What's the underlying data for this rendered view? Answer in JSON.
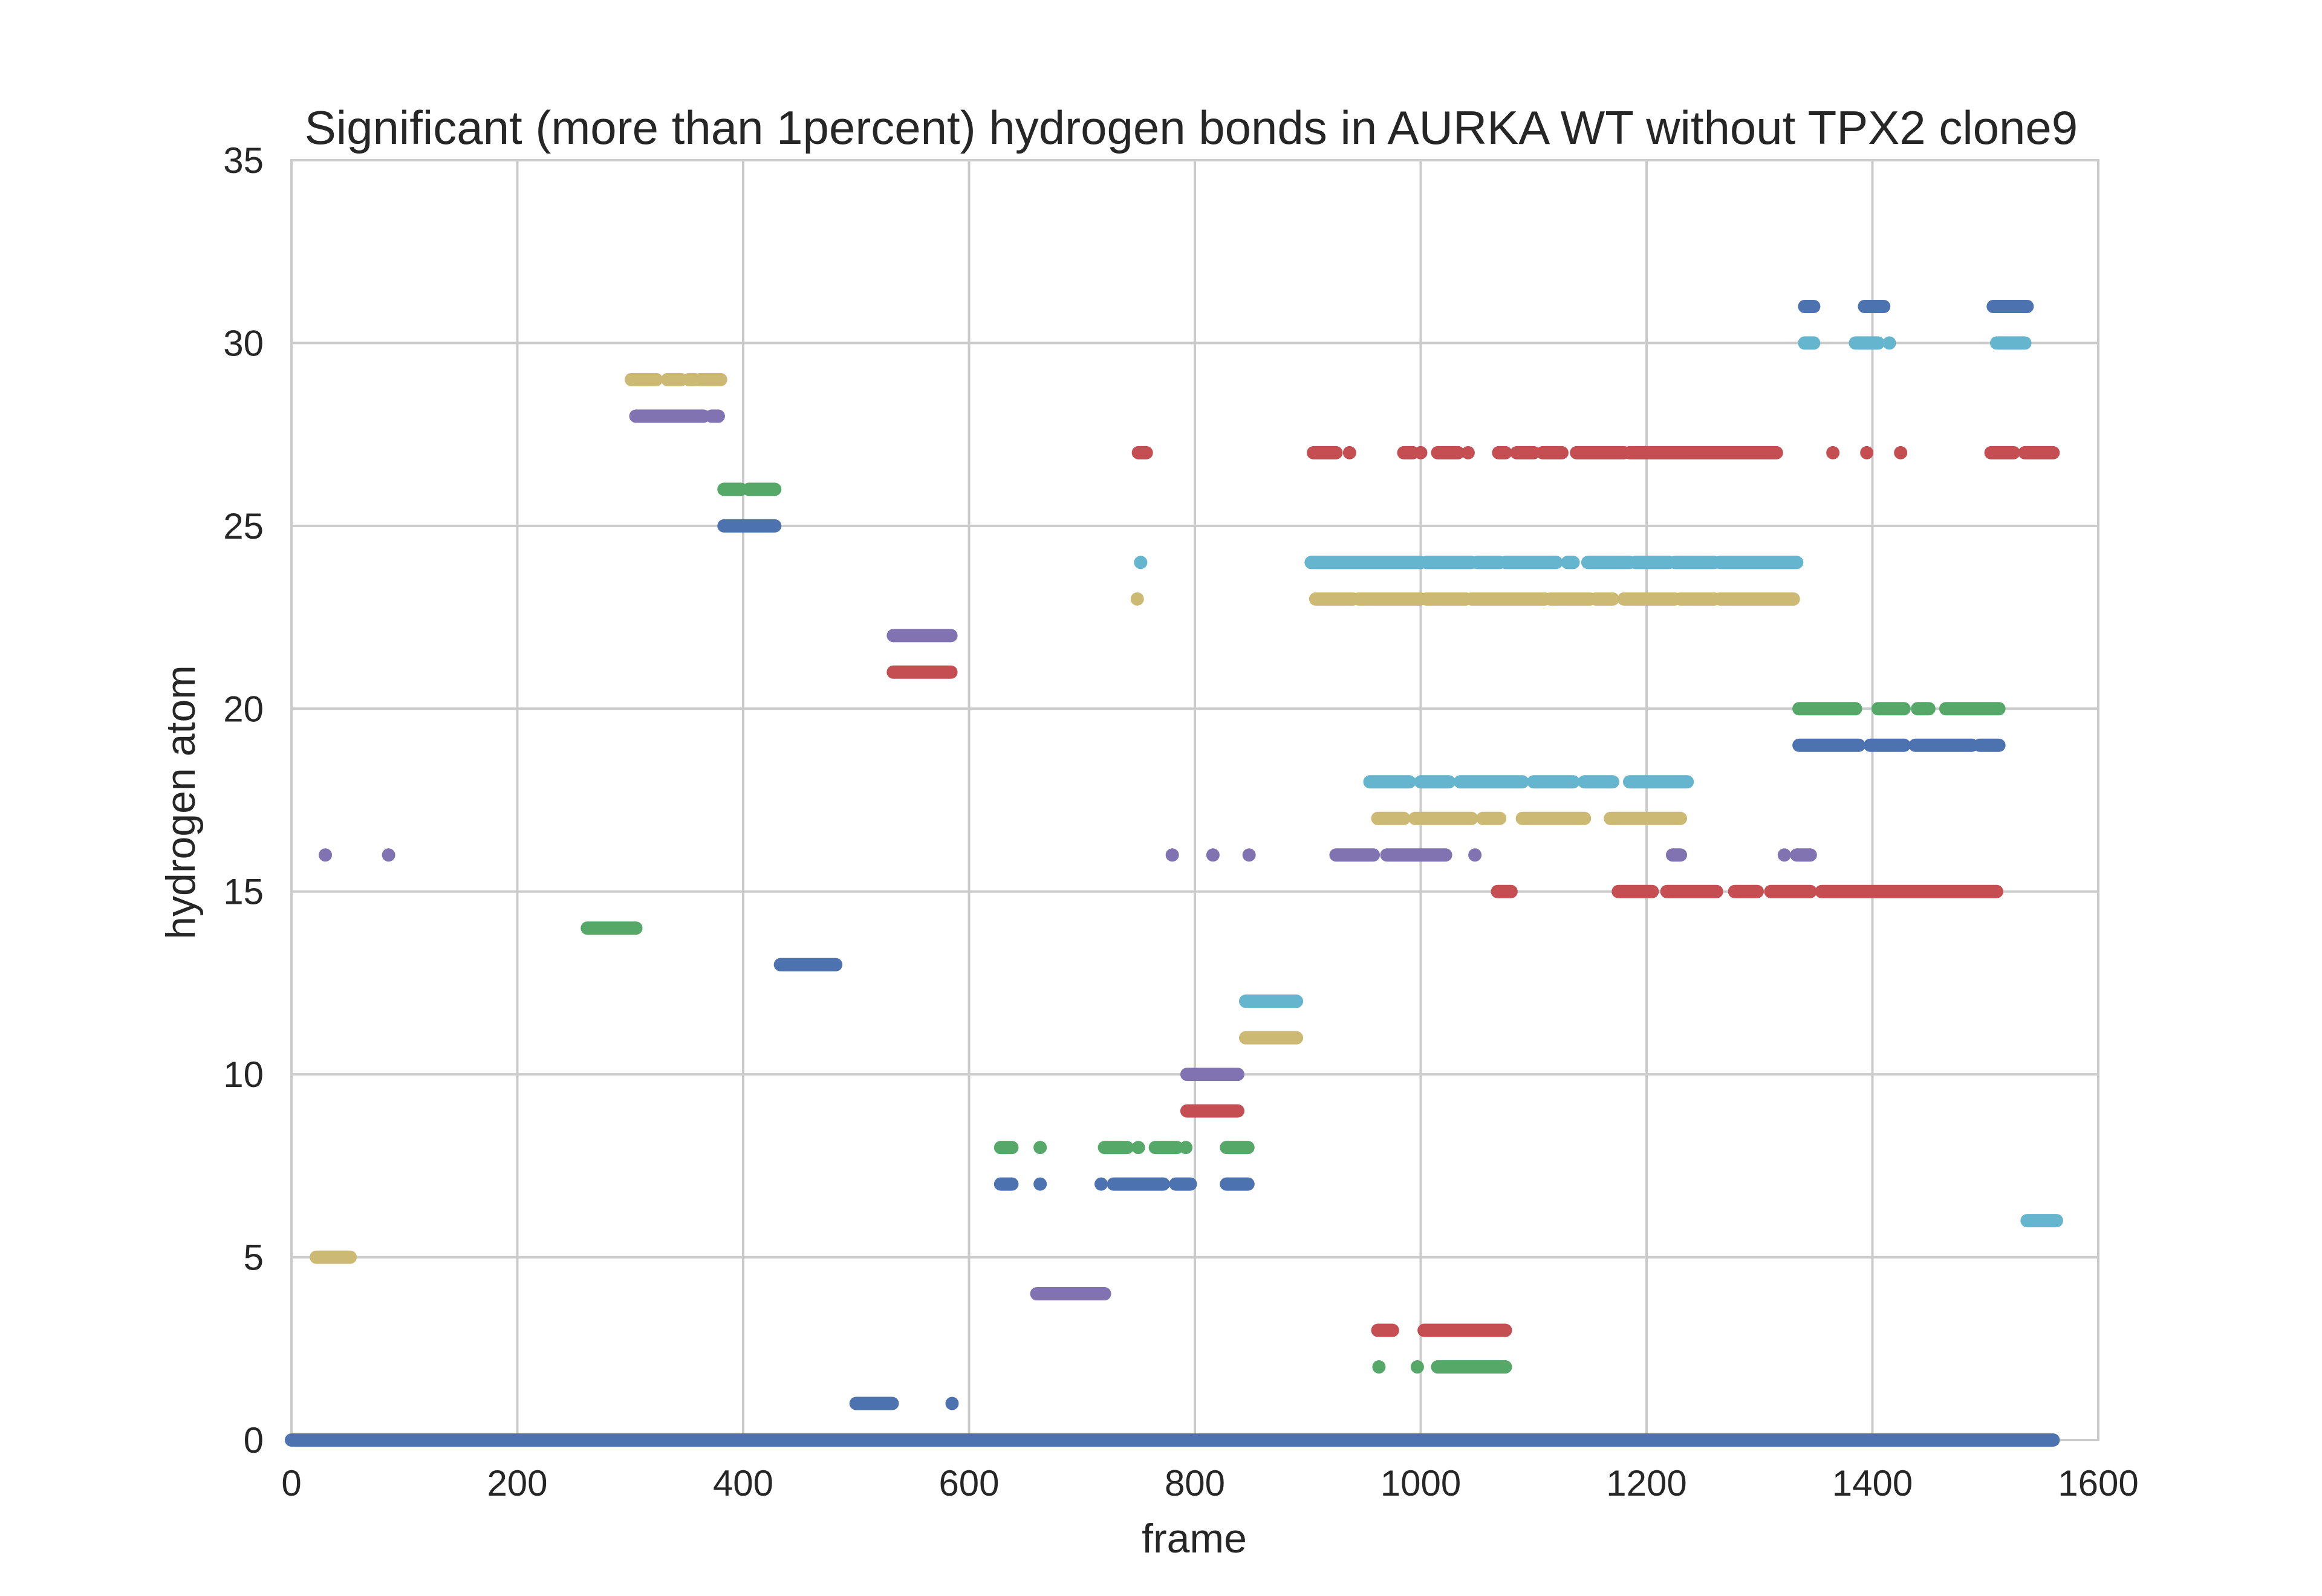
{
  "chart_data": {
    "type": "scatter",
    "title": "Significant (more than 1percent) hydrogen bonds in AURKA WT without TPX2 clone9",
    "xlabel": "frame",
    "ylabel": "hydrogen atom",
    "xlim": [
      0,
      1600
    ],
    "ylim": [
      0,
      35
    ],
    "xticks": [
      0,
      200,
      400,
      600,
      800,
      1000,
      1200,
      1400,
      1600
    ],
    "yticks": [
      0,
      5,
      10,
      15,
      20,
      25,
      30,
      35
    ],
    "xtick_labels": [
      "0",
      "200",
      "400",
      "600",
      "800",
      "1000",
      "1200",
      "1400",
      "1600"
    ],
    "ytick_labels": [
      "0",
      "5",
      "10",
      "15",
      "20",
      "25",
      "30",
      "35"
    ],
    "grid": true,
    "legend": "none",
    "colors": {
      "blue": "#4c72b0",
      "green": "#55a868",
      "red": "#c44e52",
      "purple": "#8172b2",
      "yellow": "#ccb974",
      "cyan": "#64b5cd",
      "grid": "#cbcbcb",
      "text": "#262626"
    },
    "series": [
      {
        "y": 0,
        "color": "blue",
        "x": [
          [
            0,
            1560
          ]
        ]
      },
      {
        "y": 1,
        "color": "blue",
        "x": [
          [
            500,
            532
          ],
          585
        ]
      },
      {
        "y": 2,
        "color": "green",
        "x": [
          963,
          997,
          [
            1015,
            1075
          ]
        ]
      },
      {
        "y": 3,
        "color": "red",
        "x": [
          [
            962,
            975
          ],
          [
            1003,
            1075
          ]
        ]
      },
      {
        "y": 4,
        "color": "purple",
        "x": [
          [
            660,
            720
          ]
        ]
      },
      {
        "y": 5,
        "color": "yellow",
        "x": [
          [
            22,
            52
          ]
        ]
      },
      {
        "y": 6,
        "color": "cyan",
        "x": [
          [
            1537,
            1563
          ]
        ]
      },
      {
        "y": 7,
        "color": "blue",
        "x": [
          [
            628,
            638
          ],
          663,
          717,
          [
            728,
            772
          ],
          [
            783,
            796
          ],
          [
            828,
            847
          ]
        ]
      },
      {
        "y": 8,
        "color": "green",
        "x": [
          [
            628,
            638
          ],
          663,
          [
            720,
            740
          ],
          750,
          [
            765,
            784
          ],
          792,
          [
            828,
            847
          ]
        ]
      },
      {
        "y": 9,
        "color": "red",
        "x": [
          [
            793,
            838
          ]
        ]
      },
      {
        "y": 10,
        "color": "purple",
        "x": [
          [
            793,
            838
          ]
        ]
      },
      {
        "y": 11,
        "color": "yellow",
        "x": [
          [
            845,
            890
          ]
        ]
      },
      {
        "y": 12,
        "color": "cyan",
        "x": [
          [
            845,
            890
          ]
        ]
      },
      {
        "y": 13,
        "color": "blue",
        "x": [
          [
            433,
            482
          ]
        ]
      },
      {
        "y": 14,
        "color": "green",
        "x": [
          [
            262,
            305
          ]
        ]
      },
      {
        "y": 15,
        "color": "red",
        "x": [
          [
            1068,
            1080
          ],
          [
            1175,
            1205
          ],
          [
            1218,
            1262
          ],
          [
            1278,
            1298
          ],
          [
            1310,
            1345
          ],
          [
            1355,
            1510
          ]
        ]
      },
      {
        "y": 16,
        "color": "purple",
        "x": [
          30,
          86,
          780,
          816,
          848,
          [
            925,
            958
          ],
          [
            970,
            1022
          ],
          1048,
          [
            1223,
            1230
          ],
          1322,
          [
            1333,
            1345
          ]
        ]
      },
      {
        "y": 17,
        "color": "yellow",
        "x": [
          [
            962,
            985
          ],
          [
            995,
            1045
          ],
          [
            1055,
            1070
          ],
          [
            1090,
            1145
          ],
          [
            1168,
            1230
          ]
        ]
      },
      {
        "y": 18,
        "color": "cyan",
        "x": [
          [
            955,
            990
          ],
          [
            1000,
            1025
          ],
          [
            1035,
            1090
          ],
          [
            1100,
            1135
          ],
          [
            1145,
            1170
          ],
          [
            1185,
            1236
          ]
        ]
      },
      {
        "y": 19,
        "color": "blue",
        "x": [
          [
            1335,
            1388
          ],
          [
            1398,
            1428
          ],
          [
            1438,
            1488
          ],
          [
            1495,
            1512
          ]
        ]
      },
      {
        "y": 20,
        "color": "green",
        "x": [
          [
            1335,
            1385
          ],
          [
            1405,
            1428
          ],
          [
            1440,
            1450
          ],
          [
            1465,
            1512
          ]
        ]
      },
      {
        "y": 21,
        "color": "red",
        "x": [
          [
            533,
            584
          ]
        ]
      },
      {
        "y": 22,
        "color": "purple",
        "x": [
          [
            533,
            584
          ]
        ]
      },
      {
        "y": 23,
        "color": "yellow",
        "x": 749,
        "x_ranges": [
          [
            907,
            940
          ],
          [
            945,
            1000
          ],
          [
            1005,
            1040
          ],
          [
            1045,
            1110
          ],
          [
            1115,
            1150
          ],
          [
            1155,
            1170
          ],
          [
            1180,
            1225
          ],
          [
            1230,
            1260
          ],
          [
            1265,
            1330
          ]
        ]
      },
      {
        "y": 24,
        "color": "cyan",
        "x": 752,
        "x_ranges": [
          [
            903,
            1000
          ],
          [
            1005,
            1045
          ],
          [
            1050,
            1070
          ],
          [
            1075,
            1120
          ],
          [
            1130,
            1135
          ],
          [
            1148,
            1185
          ],
          [
            1190,
            1220
          ],
          [
            1225,
            1260
          ],
          [
            1265,
            1333
          ]
        ]
      },
      {
        "y": 25,
        "color": "blue",
        "x": [
          [
            383,
            428
          ]
        ]
      },
      {
        "y": 26,
        "color": "green",
        "x": [
          [
            383,
            398
          ],
          [
            405,
            428
          ]
        ]
      },
      {
        "y": 27,
        "color": "red",
        "x": [
          [
            750,
            757
          ],
          [
            905,
            925
          ],
          937,
          [
            985,
            993
          ],
          1000,
          [
            1015,
            1033
          ],
          1042,
          [
            1069,
            1075
          ],
          [
            1085,
            1100
          ],
          [
            1108,
            1125
          ],
          [
            1138,
            1180
          ],
          [
            1185,
            1315
          ],
          1365,
          1395,
          1425,
          [
            1505,
            1525
          ],
          [
            1535,
            1560
          ]
        ]
      },
      {
        "y": 28,
        "color": "purple",
        "x": [
          [
            305,
            365
          ],
          [
            372,
            378
          ]
        ]
      },
      {
        "y": 29,
        "color": "yellow",
        "x": [
          [
            301,
            323
          ],
          [
            333,
            345
          ],
          [
            352,
            357
          ],
          [
            362,
            380
          ]
        ]
      },
      {
        "y": 30,
        "color": "cyan",
        "x": [
          [
            1340,
            1348
          ],
          [
            1385,
            1405
          ],
          1415,
          [
            1510,
            1535
          ]
        ]
      },
      {
        "y": 31,
        "color": "blue",
        "x": [
          [
            1340,
            1348
          ],
          [
            1393,
            1410
          ],
          [
            1507,
            1537
          ]
        ]
      }
    ]
  }
}
